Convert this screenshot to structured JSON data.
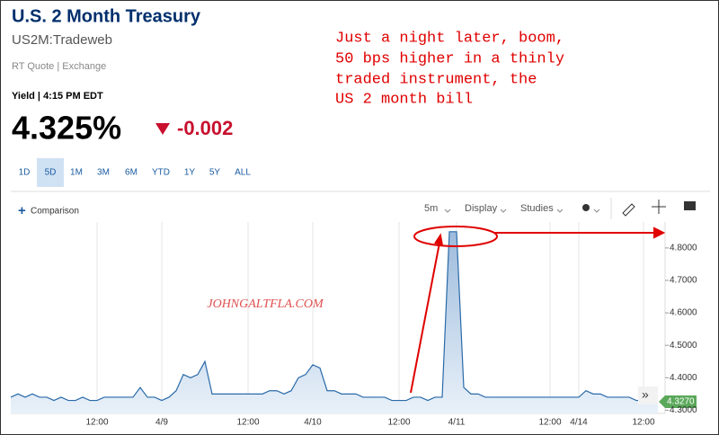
{
  "header": {
    "title": "U.S. 2 Month Treasury",
    "symbol": "US2M:Tradeweb",
    "quote_type": "RT Quote | Exchange",
    "yield_time": "Yield | 4:15 PM EDT",
    "price": "4.325%",
    "change": "-0.002"
  },
  "annotation": {
    "lines": [
      "Just a night later, boom,",
      "50 bps higher in a thinly",
      "traded instrument, the",
      "US 2 month bill"
    ]
  },
  "range_buttons": [
    "1D",
    "5D",
    "1M",
    "3M",
    "6M",
    "YTD",
    "1Y",
    "5Y",
    "ALL"
  ],
  "active_range": "5D",
  "toolbar": {
    "comparison": "Comparison",
    "interval": "5m",
    "display": "Display",
    "studies": "Studies"
  },
  "watermark": "JOHNGALTFLA.COM",
  "price_tag": "4.3270",
  "chart_data": {
    "type": "area",
    "categories": [
      null,
      null,
      null,
      null,
      null,
      null,
      null,
      null,
      null,
      null,
      null,
      null,
      "12:00",
      null,
      null,
      null,
      null,
      null,
      null,
      null,
      null,
      "4/9",
      null,
      null,
      null,
      null,
      null,
      null,
      null,
      null,
      null,
      null,
      null,
      "12:00",
      null,
      null,
      null,
      null,
      null,
      null,
      null,
      null,
      "4/10",
      null,
      null,
      null,
      null,
      null,
      null,
      null,
      null,
      null,
      null,
      null,
      "12:00",
      null,
      null,
      null,
      null,
      null,
      null,
      null,
      "4/11",
      null,
      null,
      null,
      null,
      null,
      null,
      null,
      null,
      null,
      null,
      null,
      null,
      "12:00",
      null,
      null,
      null,
      "4/14",
      null,
      null,
      null,
      null,
      null,
      null,
      null,
      null,
      "12:00",
      null,
      null
    ],
    "series": [
      {
        "name": "US2M",
        "color": "#2a6aa8",
        "values": [
          4.34,
          4.35,
          4.34,
          4.35,
          4.34,
          4.34,
          4.33,
          4.34,
          4.33,
          4.33,
          4.34,
          4.33,
          4.33,
          4.34,
          4.34,
          4.34,
          4.34,
          4.34,
          4.37,
          4.34,
          4.34,
          4.33,
          4.34,
          4.36,
          4.41,
          4.4,
          4.41,
          4.45,
          4.35,
          4.35,
          4.35,
          4.35,
          4.35,
          4.35,
          4.35,
          4.35,
          4.36,
          4.36,
          4.35,
          4.36,
          4.4,
          4.41,
          4.44,
          4.43,
          4.36,
          4.36,
          4.35,
          4.35,
          4.35,
          4.34,
          4.34,
          4.34,
          4.34,
          4.33,
          4.33,
          4.33,
          4.34,
          4.34,
          4.33,
          4.34,
          4.34,
          4.85,
          4.85,
          4.37,
          4.35,
          4.35,
          4.34,
          4.34,
          4.34,
          4.34,
          4.34,
          4.34,
          4.34,
          4.34,
          4.34,
          4.34,
          4.34,
          4.34,
          4.34,
          4.34,
          4.36,
          4.35,
          4.35,
          4.34,
          4.34,
          4.34,
          4.34,
          4.33,
          4.33,
          4.33,
          4.33
        ]
      }
    ],
    "ylim": [
      4.29,
      4.88
    ],
    "yticks": [
      {
        "value": 4.3,
        "label": "4.3000"
      },
      {
        "value": 4.4,
        "label": "4.4000"
      },
      {
        "value": 4.5,
        "label": "4.5000"
      },
      {
        "value": 4.6,
        "label": "4.6000"
      },
      {
        "value": 4.7,
        "label": "4.7000"
      },
      {
        "value": 4.8,
        "label": "4.8000"
      }
    ],
    "grid": true
  }
}
